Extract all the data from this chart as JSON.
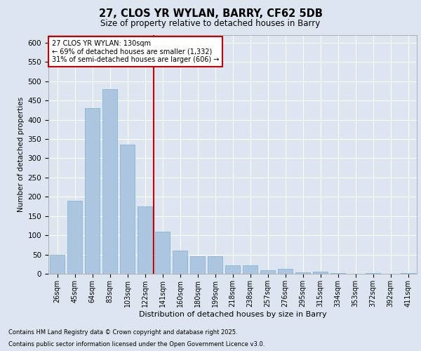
{
  "title1": "27, CLOS YR WYLAN, BARRY, CF62 5DB",
  "title2": "Size of property relative to detached houses in Barry",
  "xlabel": "Distribution of detached houses by size in Barry",
  "ylabel": "Number of detached properties",
  "categories": [
    "26sqm",
    "45sqm",
    "64sqm",
    "83sqm",
    "103sqm",
    "122sqm",
    "141sqm",
    "160sqm",
    "180sqm",
    "199sqm",
    "218sqm",
    "238sqm",
    "257sqm",
    "276sqm",
    "295sqm",
    "315sqm",
    "334sqm",
    "353sqm",
    "372sqm",
    "392sqm",
    "411sqm"
  ],
  "values": [
    50,
    190,
    430,
    480,
    335,
    175,
    110,
    60,
    45,
    45,
    22,
    22,
    10,
    12,
    4,
    5,
    1,
    0,
    2,
    0,
    1
  ],
  "bar_color": "#adc6e0",
  "bar_edge_color": "#7aafd4",
  "vline_x": 5.5,
  "vline_color": "#cc0000",
  "annotation_title": "27 CLOS YR WYLAN: 130sqm",
  "annotation_line1": "← 69% of detached houses are smaller (1,332)",
  "annotation_line2": "31% of semi-detached houses are larger (606) →",
  "annotation_box_color": "#cc0000",
  "ylim": [
    0,
    620
  ],
  "yticks": [
    0,
    50,
    100,
    150,
    200,
    250,
    300,
    350,
    400,
    450,
    500,
    550,
    600
  ],
  "footnote1": "Contains HM Land Registry data © Crown copyright and database right 2025.",
  "footnote2": "Contains public sector information licensed under the Open Government Licence v3.0.",
  "bg_color": "#dde6f0",
  "plot_bg_color": "#dde6f0"
}
